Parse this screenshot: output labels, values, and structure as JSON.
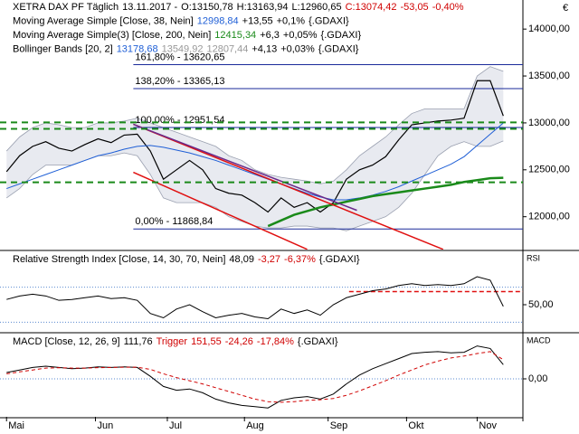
{
  "currency": "€",
  "chart_data": [
    {
      "type": "line",
      "labels": [
        [
          {
            "text": "XETRA DAX PF Täglich",
            "color": "#000"
          },
          {
            "text": "13.11.2017 -",
            "color": "#000"
          },
          {
            "text": "O:13150,78",
            "color": "#000"
          },
          {
            "text": "H:13163,94",
            "color": "#000"
          },
          {
            "text": "L:12960,65",
            "color": "#000"
          },
          {
            "text": "C:13074,42",
            "color": "#d00000"
          },
          {
            "text": "-53,05",
            "color": "#d00000"
          },
          {
            "text": "-0,40%",
            "color": "#d00000"
          }
        ],
        [
          {
            "text": "Moving Average Simple [Close, 38, Nein]",
            "color": "#000"
          },
          {
            "text": "12998,84",
            "color": "#1f5fd6"
          },
          {
            "text": "+13,55",
            "color": "#000"
          },
          {
            "text": "+0,1%",
            "color": "#000"
          },
          {
            "text": "{.GDAXI}",
            "color": "#000"
          }
        ],
        [
          {
            "text": "Moving Average Simple(3) [Close, 200, Nein]",
            "color": "#000"
          },
          {
            "text": "12415,34",
            "color": "#1a8a1a"
          },
          {
            "text": "+6,3",
            "color": "#000"
          },
          {
            "text": "+0,05%",
            "color": "#000"
          },
          {
            "text": "{.GDAXI}",
            "color": "#000"
          }
        ],
        [
          {
            "text": "Bollinger Bands [20, 2]",
            "color": "#000"
          },
          {
            "text": "13178,68",
            "color": "#1f5fd6"
          },
          {
            "text": "13549,92",
            "color": "#999"
          },
          {
            "text": "12807,44",
            "color": "#999"
          },
          {
            "text": "+4,13",
            "color": "#000"
          },
          {
            "text": "+0,03%",
            "color": "#000"
          },
          {
            "text": "{.GDAXI}",
            "color": "#000"
          }
        ]
      ],
      "x": [
        0,
        1,
        2,
        3,
        4,
        5,
        6,
        7,
        8,
        9,
        10,
        11,
        12,
        13,
        14,
        15,
        16,
        17,
        18,
        19,
        20,
        21,
        22,
        23,
        24,
        25,
        26,
        27,
        28,
        29,
        30,
        31,
        32,
        33,
        34,
        35,
        36,
        37,
        38
      ],
      "xlim": [
        -0.5,
        39.5
      ],
      "ylim": [
        11650,
        14310
      ],
      "yticks": [
        {
          "value": 12000,
          "label": "12000,00"
        },
        {
          "value": 12500,
          "label": "12500,00"
        },
        {
          "value": 13000,
          "label": "13000,00"
        },
        {
          "value": 13500,
          "label": "13500,00"
        },
        {
          "value": 14000,
          "label": "14000,00"
        }
      ],
      "bands": {
        "color": "#d8dce6",
        "upper": [
          12700,
          12850,
          12950,
          13000,
          12980,
          12950,
          12950,
          13000,
          13000,
          13020,
          13050,
          13000,
          12950,
          12900,
          12850,
          12800,
          12750,
          12650,
          12600,
          12500,
          12450,
          12420,
          12400,
          12380,
          12350,
          12380,
          12500,
          12650,
          12750,
          12850,
          12980,
          13100,
          13150,
          13150,
          13150,
          13150,
          13500,
          13600,
          13549.92
        ],
        "lower": [
          12200,
          12300,
          12450,
          12550,
          12550,
          12550,
          12600,
          12650,
          12650,
          12680,
          12650,
          12450,
          12200,
          12150,
          12150,
          12150,
          12100,
          12000,
          11950,
          11900,
          11880,
          11880,
          11900,
          11900,
          11880,
          11880,
          11850,
          11900,
          11950,
          12000,
          12100,
          12250,
          12450,
          12650,
          12750,
          12800,
          12750,
          12750,
          12807.44
        ]
      },
      "fib_levels": [
        {
          "label": "161,80% - 13620,65",
          "value": 13620.65
        },
        {
          "label": "138,20% - 13365,13",
          "value": 13365.13
        },
        {
          "label": "100,00% - 12951,54",
          "value": 12951.54
        },
        {
          "label": "0,00% - 11868,84",
          "value": 11868.84
        }
      ],
      "fib_start": 9.7,
      "fib_color": "#1a2a9a",
      "trendlines": [
        {
          "color": "#e01010",
          "dash": false,
          "x": [
            9.7,
            33.4
          ],
          "y": [
            12985,
            11652
          ]
        },
        {
          "color": "#e01010",
          "dash": false,
          "x": [
            9.7,
            23.0
          ],
          "y": [
            12473,
            11652
          ]
        },
        {
          "color": "#6a2a8a",
          "dash": false,
          "x": [
            9.7,
            26.8
          ],
          "y": [
            12985,
            12068
          ]
        },
        {
          "color": "#1a8a1a",
          "dash": true,
          "x": [
            -0.5,
            39.5
          ],
          "y": [
            13005,
            13005
          ]
        },
        {
          "color": "#1a8a1a",
          "dash": true,
          "x": [
            -0.5,
            39.5
          ],
          "y": [
            12937,
            12937
          ]
        },
        {
          "color": "#1a8a1a",
          "dash": true,
          "x": [
            -0.5,
            39.5
          ],
          "y": [
            12367,
            12367
          ]
        }
      ],
      "series": [
        {
          "name": "Close",
          "color": "#000",
          "width": 1.2,
          "values": [
            12480,
            12650,
            12750,
            12800,
            12730,
            12700,
            12770,
            12830,
            12790,
            12870,
            12880,
            12700,
            12400,
            12500,
            12600,
            12500,
            12300,
            12250,
            12230,
            12150,
            12050,
            12200,
            12100,
            12150,
            12050,
            12150,
            12400,
            12500,
            12550,
            12640,
            12820,
            12980,
            13000,
            13020,
            13030,
            13050,
            13450,
            13450,
            13074.42
          ]
        },
        {
          "name": "SMA 38",
          "color": "#1f5fd6",
          "width": 1,
          "values": [
            12300,
            12350,
            12400,
            12450,
            12500,
            12550,
            12600,
            12650,
            12680,
            12720,
            12750,
            12760,
            12740,
            12710,
            12680,
            12640,
            12600,
            12550,
            12500,
            12450,
            12400,
            12350,
            12300,
            12250,
            12210,
            12180,
            12180,
            12200,
            12230,
            12270,
            12320,
            12380,
            12440,
            12500,
            12560,
            12640,
            12760,
            12880,
            12998.84
          ]
        },
        {
          "name": "SMA 200",
          "color": "#1a8a1a",
          "width": 2.5,
          "values": [
            null,
            null,
            null,
            null,
            null,
            null,
            null,
            null,
            null,
            null,
            null,
            null,
            null,
            null,
            null,
            null,
            null,
            null,
            null,
            null,
            11900,
            11960,
            12020,
            12060,
            12100,
            12130,
            12160,
            12190,
            12220,
            12240,
            12260,
            12280,
            12300,
            12320,
            12340,
            12370,
            12390,
            12410,
            12415.34
          ]
        }
      ]
    },
    {
      "type": "line",
      "labels": [
        [
          {
            "text": "Relative Strength Index [Close, 14, 30, 70, Nein]",
            "color": "#000"
          },
          {
            "text": "48,09",
            "color": "#000"
          },
          {
            "text": "-3,27",
            "color": "#d00000"
          },
          {
            "text": "-6,37%",
            "color": "#d00000"
          },
          {
            "text": "{.GDAXI}",
            "color": "#000"
          }
        ]
      ],
      "axis_label": "RSI",
      "x": [
        0,
        1,
        2,
        3,
        4,
        5,
        6,
        7,
        8,
        9,
        10,
        11,
        12,
        13,
        14,
        15,
        16,
        17,
        18,
        19,
        20,
        21,
        22,
        23,
        24,
        25,
        26,
        27,
        28,
        29,
        30,
        31,
        32,
        33,
        34,
        35,
        36,
        37,
        38
      ],
      "xlim": [
        -0.5,
        39.5
      ],
      "ylim": [
        20,
        110
      ],
      "yticks": [
        {
          "value": 50,
          "label": "50,00"
        }
      ],
      "hlines": [
        {
          "value": 70,
          "color": "#5a8ad0",
          "dash": "1,2"
        },
        {
          "value": 30,
          "color": "#5a8ad0",
          "dash": "1,2"
        },
        {
          "value": 65,
          "color": "#e01010",
          "dash": "5,3",
          "from": 26.2
        }
      ],
      "series": [
        {
          "name": "RSI",
          "color": "#000",
          "width": 1,
          "values": [
            56,
            60,
            62,
            60,
            55,
            56,
            58,
            60,
            57,
            58,
            55,
            40,
            35,
            45,
            50,
            42,
            35,
            38,
            40,
            36,
            34,
            45,
            40,
            44,
            38,
            50,
            58,
            62,
            66,
            68,
            72,
            74,
            72,
            73,
            72,
            74,
            82,
            78,
            48.09
          ]
        }
      ]
    },
    {
      "type": "line",
      "labels": [
        [
          {
            "text": "MACD [Close, 12, 26, 9]",
            "color": "#000"
          },
          {
            "text": "111,76",
            "color": "#000"
          },
          {
            "text": "Trigger",
            "color": "#d00000"
          },
          {
            "text": "151,55",
            "color": "#d00000"
          },
          {
            "text": "-24,26",
            "color": "#d00000"
          },
          {
            "text": "-17,84%",
            "color": "#d00000"
          },
          {
            "text": "{.GDAXI}",
            "color": "#000"
          }
        ]
      ],
      "axis_label": "MACD",
      "x": [
        0,
        1,
        2,
        3,
        4,
        5,
        6,
        7,
        8,
        9,
        10,
        11,
        12,
        13,
        14,
        15,
        16,
        17,
        18,
        19,
        20,
        21,
        22,
        23,
        24,
        25,
        26,
        27,
        28,
        29,
        30,
        31,
        32,
        33,
        34,
        35,
        36,
        37,
        38
      ],
      "xlim": [
        -0.5,
        39.5
      ],
      "ylim": [
        -300,
        350
      ],
      "yticks": [
        {
          "value": 0,
          "label": "0,00"
        }
      ],
      "xticks": [
        {
          "value": 0,
          "label": "Mai"
        },
        {
          "value": 6.8,
          "label": "Jun"
        },
        {
          "value": 12.3,
          "label": "Jul"
        },
        {
          "value": 18.2,
          "label": "Aug"
        },
        {
          "value": 24.6,
          "label": "Sep"
        },
        {
          "value": 30.6,
          "label": "Okt"
        },
        {
          "value": 36,
          "label": "Nov"
        }
      ],
      "hlines": [
        {
          "value": 0,
          "color": "#5a8ad0",
          "dash": "1,2"
        }
      ],
      "series": [
        {
          "name": "MACD",
          "color": "#000",
          "width": 1,
          "values": [
            50,
            70,
            90,
            100,
            90,
            80,
            85,
            95,
            90,
            95,
            90,
            20,
            -60,
            -90,
            -80,
            -110,
            -160,
            -190,
            -210,
            -220,
            -230,
            -170,
            -150,
            -140,
            -160,
            -120,
            -40,
            30,
            80,
            120,
            160,
            200,
            210,
            215,
            205,
            210,
            260,
            240,
            111.76
          ]
        },
        {
          "name": "Trigger",
          "color": "#d00000",
          "width": 1,
          "dash": "4,3",
          "values": [
            40,
            55,
            70,
            85,
            88,
            85,
            85,
            88,
            90,
            92,
            92,
            75,
            40,
            10,
            -15,
            -40,
            -70,
            -100,
            -130,
            -160,
            -180,
            -185,
            -180,
            -170,
            -165,
            -155,
            -130,
            -95,
            -55,
            -15,
            30,
            70,
            110,
            140,
            165,
            180,
            200,
            215,
            151.55
          ]
        }
      ]
    }
  ]
}
